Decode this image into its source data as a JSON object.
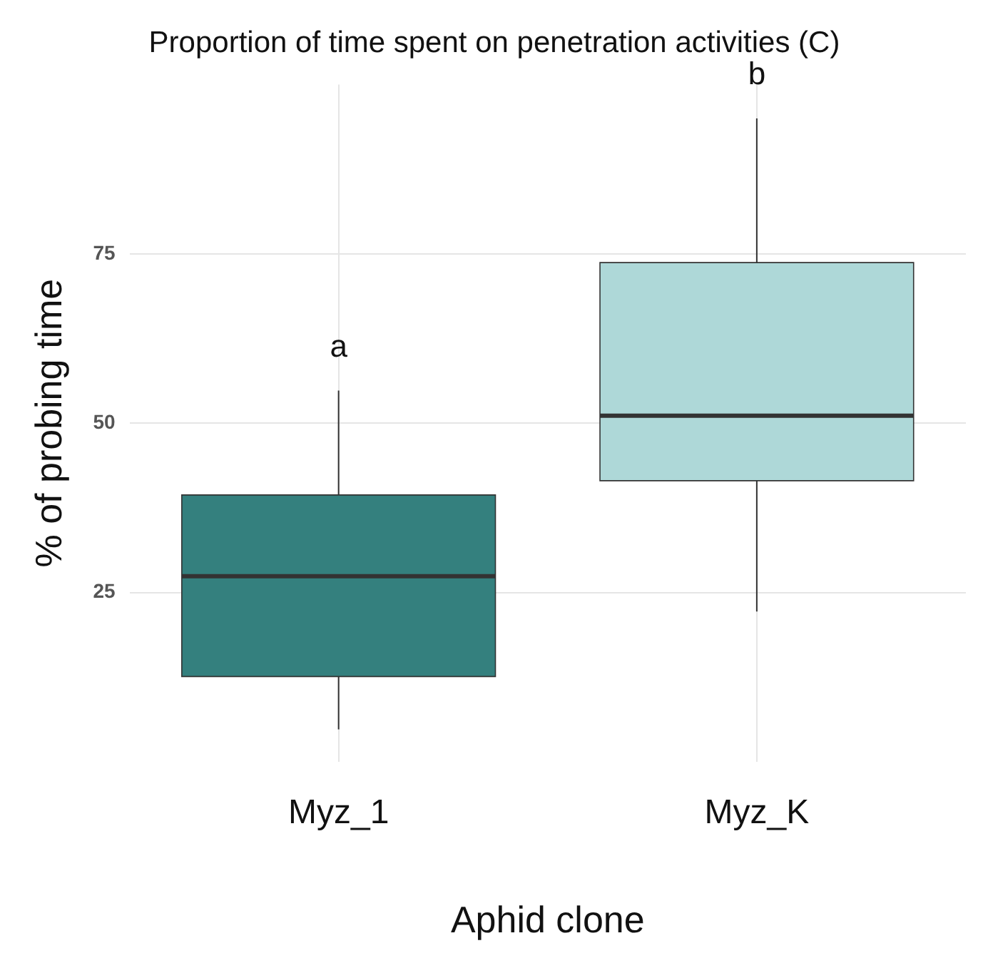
{
  "chart_data": {
    "type": "box",
    "title": "Proportion of time spent on penetration activities (C)",
    "xlabel": "Aphid clone",
    "ylabel": "% of probing time",
    "categories": [
      "Myz_1",
      "Myz_K"
    ],
    "boxes": [
      {
        "low": 4.8,
        "q1": 12.6,
        "median": 27.4,
        "q3": 39.4,
        "high": 54.8
      },
      {
        "low": 22.2,
        "q1": 41.5,
        "median": 51.1,
        "q3": 73.7,
        "high": 95
      }
    ],
    "colors": [
      "#34807e",
      "#aed8d8"
    ],
    "ylim": [
      0,
      100
    ],
    "yticks": [
      25,
      50,
      75
    ],
    "grid": true,
    "legend": false,
    "annotations": [
      "a",
      "b"
    ]
  }
}
